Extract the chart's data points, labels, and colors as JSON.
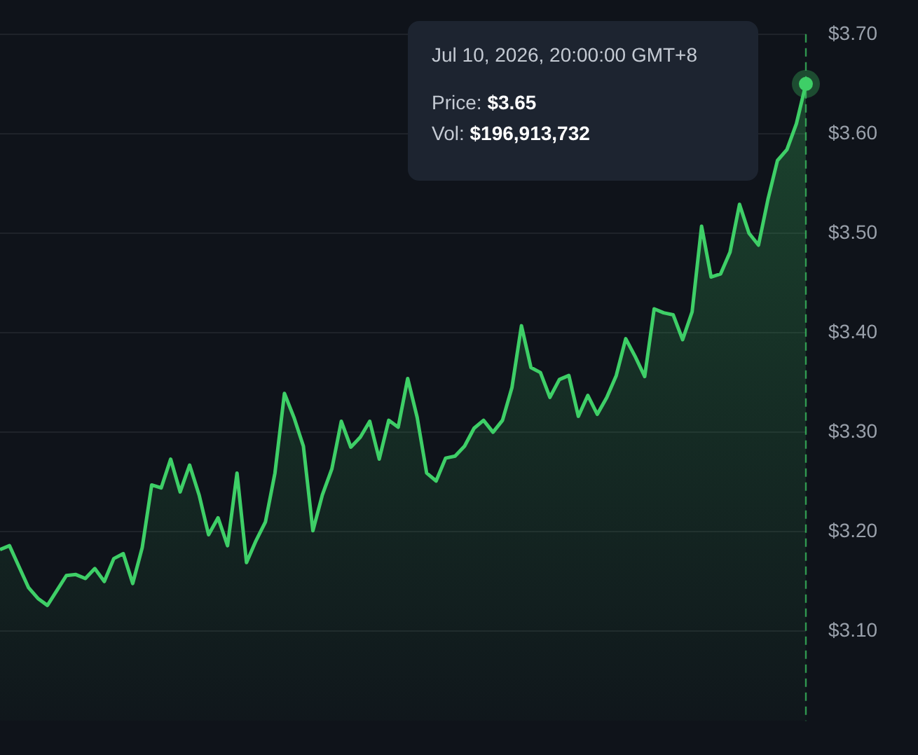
{
  "chart_data": {
    "type": "area",
    "categories": [
      null,
      null,
      null,
      null,
      null,
      null,
      null,
      null,
      null,
      null,
      null,
      null,
      null,
      null,
      null,
      null,
      null,
      null,
      null,
      null,
      null,
      null,
      null,
      null,
      null,
      null,
      null,
      null,
      null,
      null,
      null,
      null,
      null,
      null,
      null,
      null,
      null,
      null,
      null,
      null,
      null,
      null,
      null,
      null,
      null,
      null,
      null,
      null,
      null,
      null,
      null,
      null,
      null,
      null,
      null,
      null,
      null,
      null,
      null,
      null,
      null,
      null,
      null,
      null,
      null,
      null,
      null,
      null,
      null,
      null,
      null,
      null,
      null,
      null,
      null,
      null,
      null,
      null,
      null,
      null,
      null,
      null,
      null,
      null,
      null,
      null
    ],
    "series": [
      {
        "color": "#3ecf67",
        "values": [
          3.182,
          3.186,
          3.165,
          3.144,
          3.133,
          3.126,
          3.141,
          3.156,
          3.157,
          3.153,
          3.163,
          3.15,
          3.173,
          3.178,
          3.148,
          3.184,
          3.247,
          3.244,
          3.273,
          3.24,
          3.267,
          3.237,
          3.197,
          3.214,
          3.186,
          3.259,
          3.169,
          3.191,
          3.21,
          3.259,
          3.339,
          3.315,
          3.286,
          3.201,
          3.237,
          3.263,
          3.311,
          3.285,
          3.295,
          3.311,
          3.273,
          3.312,
          3.305,
          3.354,
          3.315,
          3.259,
          3.251,
          3.274,
          3.276,
          3.286,
          3.304,
          3.312,
          3.3,
          3.312,
          3.345,
          3.407,
          3.365,
          3.36,
          3.335,
          3.353,
          3.357,
          3.316,
          3.337,
          3.318,
          3.335,
          3.357,
          3.394,
          3.376,
          3.356,
          3.424,
          3.42,
          3.418,
          3.393,
          3.421,
          3.507,
          3.456,
          3.459,
          3.481,
          3.529,
          3.5,
          3.488,
          3.534,
          3.573,
          3.584,
          3.61,
          3.65
        ]
      }
    ],
    "ylim": [
      3.01,
      3.7
    ],
    "yticks": [
      {
        "value": 3.1,
        "label": "$3.10"
      },
      {
        "value": 3.2,
        "label": "$3.20"
      },
      {
        "value": 3.3,
        "label": "$3.30"
      },
      {
        "value": 3.4,
        "label": "$3.40"
      },
      {
        "value": 3.5,
        "label": "$3.50"
      },
      {
        "value": 3.6,
        "label": "$3.60"
      },
      {
        "value": 3.7,
        "label": "$3.70"
      }
    ],
    "grid": "y",
    "tick_labels": "y",
    "legend": false,
    "marker": "none",
    "line_style": "solid",
    "annotations": [
      "Jul 10, 2026, 20:00:00 GMT+8",
      "Price: $3.65",
      "Vol: $196,913,732"
    ]
  }
}
